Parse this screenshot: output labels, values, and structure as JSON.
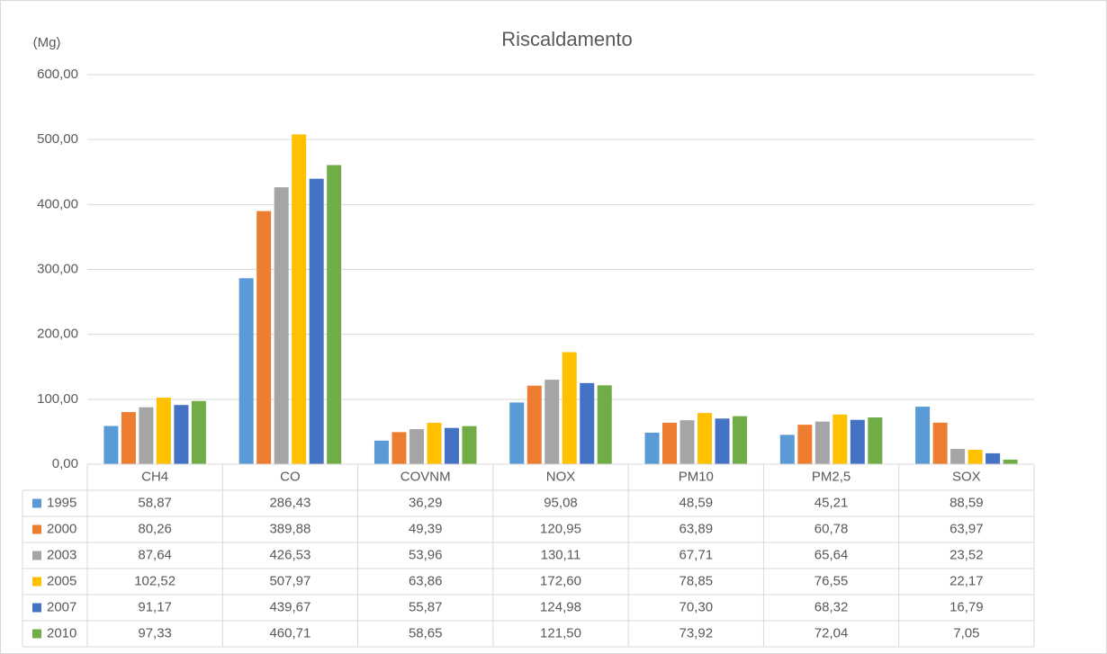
{
  "chart_data": {
    "type": "bar",
    "title": "Riscaldamento",
    "y_label": "(Mg)",
    "categories": [
      "CH4",
      "CO",
      "COVNM",
      "NOX",
      "PM10",
      "PM2,5",
      "SOX"
    ],
    "ylim": [
      0,
      600
    ],
    "yticks": [
      {
        "value": 0,
        "label": "0,00"
      },
      {
        "value": 100,
        "label": "100,00"
      },
      {
        "value": 200,
        "label": "200,00"
      },
      {
        "value": 300,
        "label": "300,00"
      },
      {
        "value": 400,
        "label": "400,00"
      },
      {
        "value": 500,
        "label": "500,00"
      },
      {
        "value": 600,
        "label": "600,00"
      }
    ],
    "grid": true,
    "series": [
      {
        "name": "1995",
        "color": "#5b9bd5",
        "values": [
          58.87,
          286.43,
          36.29,
          95.08,
          48.59,
          45.21,
          88.59
        ],
        "value_labels": [
          "58,87",
          "286,43",
          "36,29",
          "95,08",
          "48,59",
          "45,21",
          "88,59"
        ]
      },
      {
        "name": "2000",
        "color": "#ed7d31",
        "values": [
          80.26,
          389.88,
          49.39,
          120.95,
          63.89,
          60.78,
          63.97
        ],
        "value_labels": [
          "80,26",
          "389,88",
          "49,39",
          "120,95",
          "63,89",
          "60,78",
          "63,97"
        ]
      },
      {
        "name": "2003",
        "color": "#a5a5a5",
        "values": [
          87.64,
          426.53,
          53.96,
          130.11,
          67.71,
          65.64,
          23.52
        ],
        "value_labels": [
          "87,64",
          "426,53",
          "53,96",
          "130,11",
          "67,71",
          "65,64",
          "23,52"
        ]
      },
      {
        "name": "2005",
        "color": "#ffc000",
        "values": [
          102.52,
          507.97,
          63.86,
          172.6,
          78.85,
          76.55,
          22.17
        ],
        "value_labels": [
          "102,52",
          "507,97",
          "63,86",
          "172,60",
          "78,85",
          "76,55",
          "22,17"
        ]
      },
      {
        "name": "2007",
        "color": "#4472c4",
        "values": [
          91.17,
          439.67,
          55.87,
          124.98,
          70.3,
          68.32,
          16.79
        ],
        "value_labels": [
          "91,17",
          "439,67",
          "55,87",
          "124,98",
          "70,30",
          "68,32",
          "16,79"
        ]
      },
      {
        "name": "2010",
        "color": "#70ad47",
        "values": [
          97.33,
          460.71,
          58.65,
          121.5,
          73.92,
          72.04,
          7.05
        ],
        "value_labels": [
          "97,33",
          "460,71",
          "58,65",
          "121,50",
          "73,92",
          "72,04",
          "7,05"
        ]
      }
    ]
  }
}
